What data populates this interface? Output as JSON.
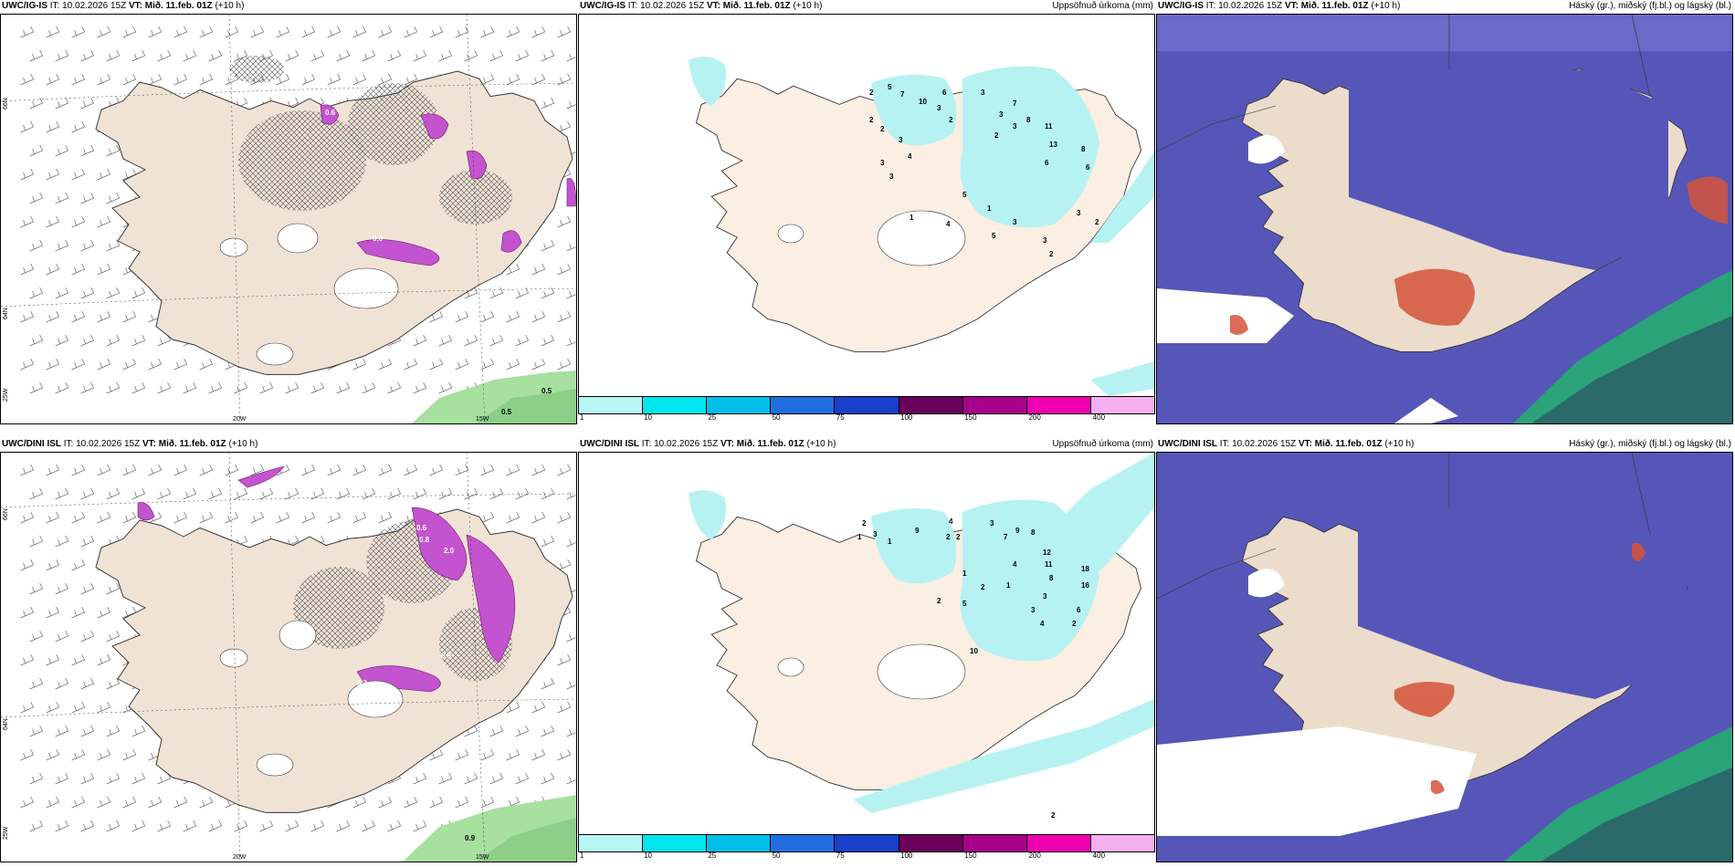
{
  "panels": {
    "p1": {
      "model": "UWC/IG-IS",
      "it": "IT: 10.02.2026 15Z",
      "vt": "VT: Mið. 11.feb. 01Z",
      "lead": "(+10 h)",
      "right": ""
    },
    "p2": {
      "model": "UWC/IG-IS",
      "it": "IT: 10.02.2026 15Z",
      "vt": "VT: Mið. 11.feb. 01Z",
      "lead": "(+10 h)",
      "right": "Uppsöfnuð úrkoma (mm)"
    },
    "p3": {
      "model": "UWC/IG-IS",
      "it": "IT: 10.02.2026 15Z",
      "vt": "VT: Mið. 11.feb. 01Z",
      "lead": "(+10 h)",
      "right": "Háský (gr.), miðský (fj.bl.) og lágský (bl.)"
    },
    "p4": {
      "model": "UWC/DINI ISL",
      "it": "IT: 10.02.2026 15Z",
      "vt": "VT: Mið. 11.feb. 01Z",
      "lead": "(+10 h)",
      "right": ""
    },
    "p5": {
      "model": "UWC/DINI ISL",
      "it": "IT: 10.02.2026 15Z",
      "vt": "VT: Mið. 11.feb. 01Z",
      "lead": "(+10 h)",
      "right": "Uppsöfnuð úrkoma (mm)"
    },
    "p6": {
      "model": "UWC/DINI ISL",
      "it": "IT: 10.02.2026 15Z",
      "vt": "VT: Mið. 11.feb. 01Z",
      "lead": "(+10 h)",
      "right": "Háský (gr.), miðský (fj.bl.) og lágský (bl.)"
    }
  },
  "gridlabels": {
    "lat66": "66N",
    "lat64": "64N",
    "lon20": "20W",
    "lon15": "15W",
    "lon25": "25W"
  },
  "colorbar": {
    "labels": [
      "1",
      "10",
      "25",
      "50",
      "75",
      "100",
      "150",
      "200",
      "400"
    ],
    "colors": [
      "#b8f5f5",
      "#00e5ee",
      "#00bfe8",
      "#1f6fe0",
      "#1a3fc8",
      "#6a005a",
      "#a8008a",
      "#f000b0",
      "#f5b0f0"
    ]
  },
  "colors": {
    "land": "#f0e3d5",
    "precip": "#b6f2f2",
    "snow": "#c453cf",
    "hatch": "#555555",
    "cloud_low": "#5656b8",
    "cloud_high": "#d5523a",
    "cloud_mid": "#2aa478",
    "bg": "#ffffff"
  },
  "precip_labels_top": [
    "2",
    "5",
    "7",
    "10",
    "6",
    "3",
    "2",
    "3",
    "7",
    "3",
    "3",
    "2",
    "8",
    "11",
    "13",
    "6",
    "8",
    "6",
    "2",
    "2",
    "3",
    "4",
    "3",
    "3",
    "5",
    "1",
    "4",
    "5",
    "3",
    "3",
    "2",
    "3",
    "2",
    "1"
  ],
  "precip_labels_bottom": [
    "2",
    "1",
    "3",
    "1",
    "9",
    "4",
    "2",
    "2",
    "3",
    "7",
    "9",
    "8",
    "12",
    "11",
    "8",
    "4",
    "1",
    "2",
    "5",
    "2",
    "1",
    "4",
    "3",
    "3",
    "10",
    "18",
    "16",
    "6",
    "2",
    "2"
  ],
  "wind_labels_top": [
    "0.5",
    "0.6",
    "0.5",
    "0.6"
  ],
  "wind_labels_bottom": [
    "0.6",
    "0.8",
    "2.0",
    "0.5",
    "0.3",
    "0.9"
  ]
}
